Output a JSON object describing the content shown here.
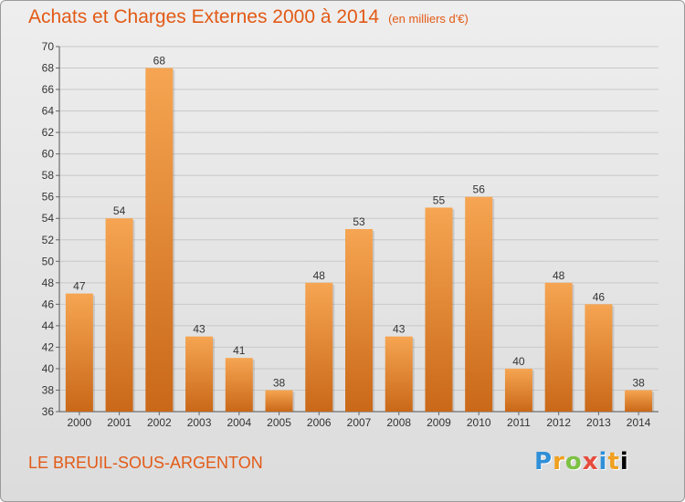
{
  "title": "Achats et Charges Externes 2000 à 2014",
  "unit_note": "(en milliers d'€)",
  "commune": "LE BREUIL-SOUS-ARGENTON",
  "logo_letters": [
    "P",
    "r",
    "o",
    "x",
    "i",
    "t",
    "i"
  ],
  "colors": {
    "accent": "#e25a16",
    "bar_top": "#f6a552",
    "bar_bottom": "#c96818"
  },
  "chart_data": {
    "type": "bar",
    "categories": [
      "2000",
      "2001",
      "2002",
      "2003",
      "2004",
      "2005",
      "2006",
      "2007",
      "2008",
      "2009",
      "2010",
      "2011",
      "2012",
      "2013",
      "2014"
    ],
    "values": [
      47,
      54,
      68,
      43,
      41,
      38,
      48,
      53,
      43,
      55,
      56,
      40,
      48,
      46,
      38
    ],
    "ylim": [
      36,
      70
    ],
    "yticks": [
      36,
      38,
      40,
      42,
      44,
      46,
      48,
      50,
      52,
      54,
      56,
      58,
      60,
      62,
      64,
      66,
      68,
      70
    ],
    "grid": true,
    "title": "Achats et Charges Externes 2000 à 2014",
    "xlabel": "",
    "ylabel": ""
  }
}
